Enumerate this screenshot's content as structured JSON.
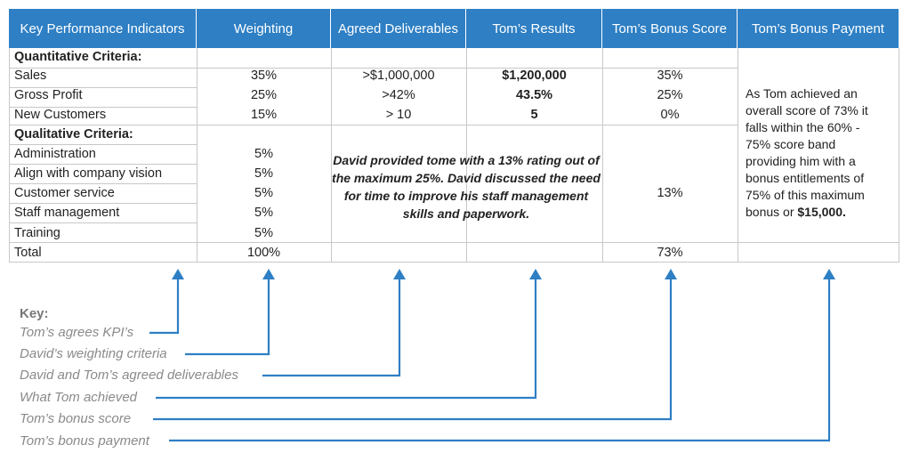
{
  "table": {
    "headers": [
      "Key Performance Indicators",
      "Weighting",
      "Agreed Deliverables",
      "Tom’s Results",
      "Tom’s Bonus Score",
      "Tom’s Bonus Payment"
    ],
    "quantitative_label": "Quantitative Criteria:",
    "qualitative_label": "Qualitative Criteria:",
    "quantitative_rows": [
      {
        "kpi": "Sales",
        "weighting": "35%",
        "deliverable": ">$1,000,000",
        "result": "$1,200,000",
        "score": "35%"
      },
      {
        "kpi": "Gross Profit",
        "weighting": "25%",
        "deliverable": ">42%",
        "result": "43.5%",
        "score": "25%"
      },
      {
        "kpi": "New Customers",
        "weighting": "15%",
        "deliverable": "> 10",
        "result": "5",
        "score": "0%"
      }
    ],
    "qualitative_rows": [
      {
        "kpi": "Administration",
        "weighting": "5%"
      },
      {
        "kpi": "Align with company vision",
        "weighting": "5%"
      },
      {
        "kpi": "Customer service",
        "weighting": "5%"
      },
      {
        "kpi": "Staff management",
        "weighting": "5%"
      },
      {
        "kpi": "Training",
        "weighting": "5%"
      }
    ],
    "qualitative_note": "David provided tome with a 13% rating out of the maximum 25%. David discussed the need for time to improve his staff management skills and paperwork.",
    "qualitative_score": "13%",
    "total": {
      "label": "Total",
      "weighting": "100%",
      "score": "73%"
    },
    "payment_text": "As Tom achieved an overall score of 73% it falls within the 60% - 75% score band providing him with a bonus entitlements of 75% of this maximum bonus or ",
    "payment_amount": "$15,000."
  },
  "key": {
    "title": "Key:",
    "items": [
      "Tom’s agrees KPI’s",
      "David’s weighting criteria",
      "David and Tom’s agreed deliverables",
      "What Tom achieved",
      "Tom’s bonus score",
      "Tom’s bonus payment"
    ]
  },
  "colors": {
    "header": "#2e7fc4",
    "arrow": "#2e7fc4",
    "grid": "#c8c8c8",
    "key_text": "#8a8a8a"
  }
}
